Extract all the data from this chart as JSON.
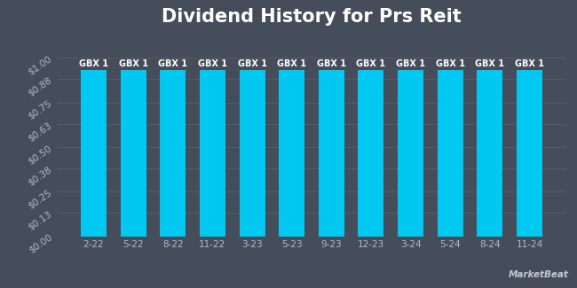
{
  "title": "Dividend History for Prs Reit",
  "categories": [
    "2-22",
    "5-22",
    "8-22",
    "11-22",
    "3-23",
    "5-23",
    "9-23",
    "12-23",
    "3-24",
    "5-24",
    "8-24",
    "11-24"
  ],
  "values": [
    0.93,
    0.93,
    0.93,
    0.93,
    0.93,
    0.93,
    0.93,
    0.93,
    0.93,
    0.93,
    0.93,
    0.93
  ],
  "bar_labels": [
    "GBX 1",
    "GBX 1",
    "GBX 1",
    "GBX 1",
    "GBX 1",
    "GBX 1",
    "GBX 1",
    "GBX 1",
    "GBX 1",
    "GBX 1",
    "GBX 1",
    "GBX 1"
  ],
  "bar_color": "#00c8f0",
  "background_color": "#464d5a",
  "plot_bg_color": "#464d5a",
  "title_color": "#ffffff",
  "tick_color": "#b0b8c8",
  "bar_label_color": "#ffffff",
  "grid_color": "#555f6e",
  "yticks": [
    0.0,
    0.13,
    0.25,
    0.38,
    0.5,
    0.63,
    0.75,
    0.88,
    1.0
  ],
  "ytick_labels": [
    "$0.00",
    "$0.13",
    "$0.25",
    "$0.38",
    "$0.50",
    "$0.63",
    "$0.75",
    "$0.88",
    "$1.00"
  ],
  "ylim": [
    0,
    1.13
  ],
  "title_fontsize": 15,
  "tick_fontsize": 7.5,
  "bar_label_fontsize": 7,
  "watermark": "MarketBeat",
  "watermark_color": "#c0c8d0"
}
